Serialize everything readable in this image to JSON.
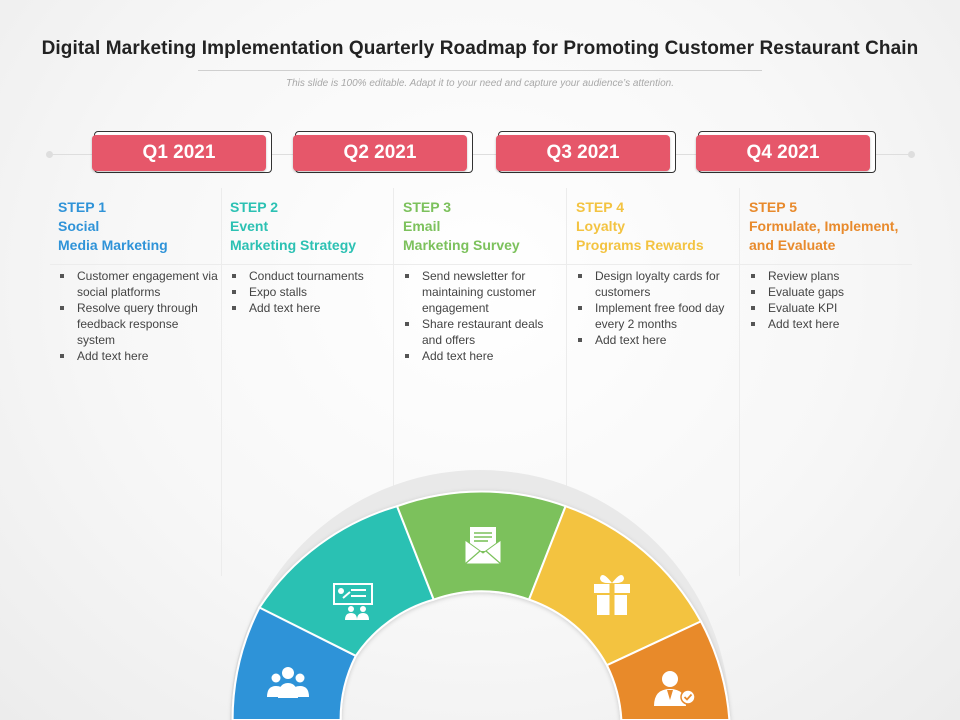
{
  "title": "Digital Marketing Implementation Quarterly Roadmap for Promoting Customer Restaurant Chain",
  "subtitle": "This slide is 100% editable. Adapt it to your need and capture your audience’s attention.",
  "quarters": [
    "Q1 2021",
    "Q2 2021",
    "Q3 2021",
    "Q4 2021"
  ],
  "colors": {
    "quarter_box": "#e6576a",
    "step1": "#2f93d8",
    "step2": "#2cc1b3",
    "step3": "#7cc15c",
    "step4": "#f3c341",
    "step5": "#e88a2c"
  },
  "steps": [
    {
      "label": "STEP 1",
      "line1": "Social",
      "line2": "Media Marketing",
      "bullets": [
        "Customer engagement via social platforms",
        "Resolve query through feedback response system",
        "Add text here"
      ],
      "icon": "people-group-icon"
    },
    {
      "label": "STEP 2",
      "line1": "Event",
      "line2": "Marketing  Strategy",
      "bullets": [
        "Conduct tournaments",
        "Expo stalls",
        "Add text here"
      ],
      "icon": "presentation-audience-icon"
    },
    {
      "label": "STEP 3",
      "line1": "Email",
      "line2": "Marketing  Survey",
      "bullets": [
        "Send newsletter for maintaining customer engagement",
        "Share restaurant deals and offers",
        "Add text here"
      ],
      "icon": "email-envelope-icon"
    },
    {
      "label": "STEP 4",
      "line1": "Loyalty",
      "line2": "Programs Rewards",
      "bullets": [
        "Design loyalty cards for customers",
        "Implement free food day every 2 months",
        "Add text here"
      ],
      "icon": "gift-box-icon"
    },
    {
      "label": "STEP 5",
      "line1": "Formulate, Implement,",
      "line2": "and Evaluate",
      "bullets": [
        "Review plans",
        "Evaluate gaps",
        "Evaluate KPI",
        "Add text here"
      ],
      "icon": "user-check-icon"
    }
  ]
}
